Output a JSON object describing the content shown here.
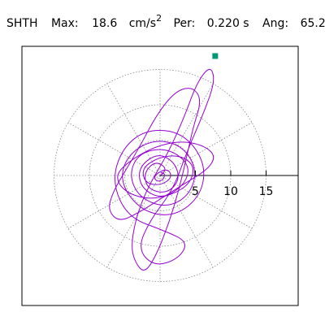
{
  "header": {
    "station": "SHTH",
    "max_label": "Max:",
    "max_value": "18.6",
    "max_unit": "cm/s",
    "max_unit_exp": "2",
    "per_label": "Per:",
    "per_value": "0.220 s",
    "ang_label": "Ang:",
    "ang_value": "65.2"
  },
  "chart_data": {
    "type": "polar-orbit",
    "radial_ticks": [
      5,
      10,
      15
    ],
    "radial_tick_labels": [
      "5",
      "10",
      "15"
    ],
    "grid_rings": [
      5,
      10,
      15
    ],
    "grid_spokes_deg": [
      0,
      30,
      60,
      90,
      120,
      150,
      180,
      210,
      240,
      270,
      300,
      330
    ],
    "grid_style": "dotted",
    "trace_color": "#9400d3",
    "marker_color": "#009977",
    "max_amplitude": 18.6,
    "max_angle_deg": 65.2,
    "trace_points": [
      [
        0.0,
        0.0
      ],
      [
        1.2,
        0.8
      ],
      [
        -0.6,
        2.1
      ],
      [
        -2.3,
        0.4
      ],
      [
        -1.8,
        -1.9
      ],
      [
        0.9,
        -2.6
      ],
      [
        2.8,
        -0.7
      ],
      [
        2.1,
        1.9
      ],
      [
        -0.4,
        3.2
      ],
      [
        -3.1,
        1.1
      ],
      [
        -2.7,
        -1.8
      ],
      [
        0.3,
        -3.4
      ],
      [
        3.6,
        -1.2
      ],
      [
        4.2,
        1.6
      ],
      [
        1.1,
        3.9
      ],
      [
        -2.9,
        3.3
      ],
      [
        -4.4,
        0.2
      ],
      [
        -3.0,
        -3.1
      ],
      [
        0.8,
        -4.6
      ],
      [
        4.1,
        -2.9
      ],
      [
        5.3,
        0.8
      ],
      [
        3.0,
        4.4
      ],
      [
        -1.2,
        5.1
      ],
      [
        -4.9,
        2.6
      ],
      [
        -5.6,
        -1.3
      ],
      [
        -2.4,
        -5.2
      ],
      [
        2.2,
        -5.8
      ],
      [
        5.9,
        -2.7
      ],
      [
        6.4,
        1.9
      ],
      [
        3.2,
        6.1
      ],
      [
        -1.9,
        6.6
      ],
      [
        -5.4,
        3.8
      ],
      [
        -6.8,
        -0.9
      ],
      [
        -4.6,
        -5.9
      ],
      [
        0.6,
        -7.8
      ],
      [
        4.0,
        -9.4
      ],
      [
        2.6,
        -11.8
      ],
      [
        -0.8,
        -12.9
      ],
      [
        -3.2,
        -10.4
      ],
      [
        -1.4,
        -6.3
      ],
      [
        1.8,
        -2.1
      ],
      [
        3.9,
        3.6
      ],
      [
        6.2,
        8.9
      ],
      [
        7.8,
        13.4
      ],
      [
        7.1,
        15.6
      ],
      [
        5.2,
        13.1
      ],
      [
        3.4,
        8.2
      ],
      [
        1.1,
        3.1
      ],
      [
        -1.6,
        -1.4
      ],
      [
        -3.3,
        -5.6
      ],
      [
        -4.1,
        -9.8
      ],
      [
        -3.6,
        -12.2
      ],
      [
        -2.2,
        -13.9
      ],
      [
        -0.5,
        -11.2
      ],
      [
        1.3,
        -6.6
      ],
      [
        2.7,
        -1.9
      ],
      [
        3.8,
        2.8
      ],
      [
        4.7,
        6.9
      ],
      [
        5.9,
        10.7
      ],
      [
        4.6,
        12.6
      ],
      [
        2.1,
        11.9
      ],
      [
        -0.6,
        8.4
      ],
      [
        -2.8,
        4.2
      ],
      [
        -4.9,
        0.7
      ],
      [
        -6.7,
        -2.4
      ],
      [
        -7.4,
        -4.9
      ],
      [
        -5.8,
        -6.6
      ],
      [
        -2.9,
        -5.2
      ],
      [
        0.4,
        -3.1
      ],
      [
        3.7,
        -1.0
      ],
      [
        6.8,
        0.9
      ],
      [
        7.9,
        2.8
      ],
      [
        6.1,
        4.3
      ],
      [
        2.9,
        4.9
      ],
      [
        -0.7,
        4.1
      ],
      [
        -4.0,
        2.3
      ],
      [
        -6.4,
        0.1
      ],
      [
        -5.2,
        -2.2
      ],
      [
        -1.9,
        -3.4
      ],
      [
        1.6,
        -2.8
      ],
      [
        4.3,
        -1.1
      ],
      [
        4.9,
        1.4
      ],
      [
        2.8,
        2.9
      ],
      [
        -0.2,
        2.6
      ],
      [
        -2.6,
        1.0
      ],
      [
        -2.1,
        -1.1
      ],
      [
        0.1,
        -1.4
      ],
      [
        1.7,
        -0.3
      ],
      [
        1.2,
        0.9
      ],
      [
        0.0,
        0.6
      ],
      [
        -0.9,
        -0.2
      ],
      [
        -0.4,
        -0.9
      ],
      [
        0.5,
        -0.6
      ],
      [
        0.7,
        0.3
      ],
      [
        0.1,
        0.4
      ]
    ],
    "marker_point": [
      7.8,
      16.9
    ]
  }
}
